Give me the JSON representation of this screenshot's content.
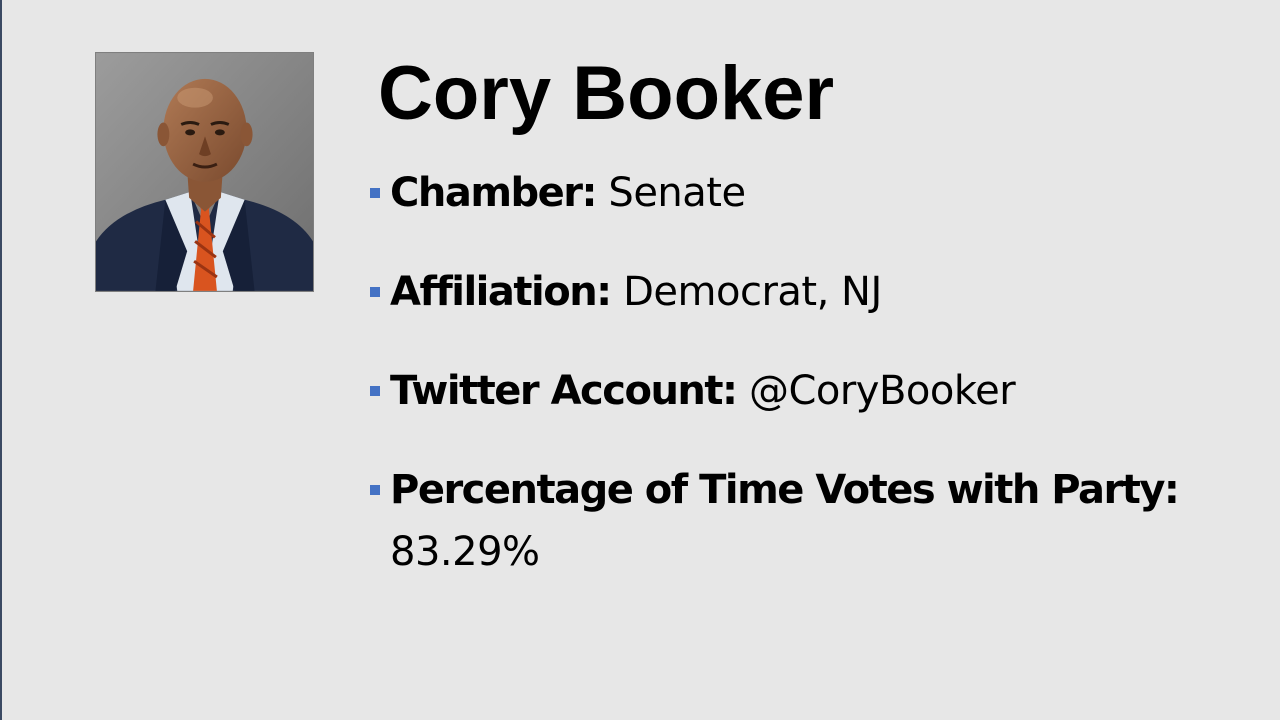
{
  "slide": {
    "title": "Cory Booker",
    "photo_alt": "portrait-photo",
    "accent_color": "#4472c4",
    "background_color": "#e7e7e7",
    "items": [
      {
        "label": "Chamber:",
        "value": "Senate"
      },
      {
        "label": "Affiliation:",
        "value": "Democrat, NJ"
      },
      {
        "label": "Twitter Account:",
        "value": "@CoryBooker"
      },
      {
        "label": "Percentage of Time Votes with Party:",
        "value": "83.29%"
      }
    ]
  }
}
